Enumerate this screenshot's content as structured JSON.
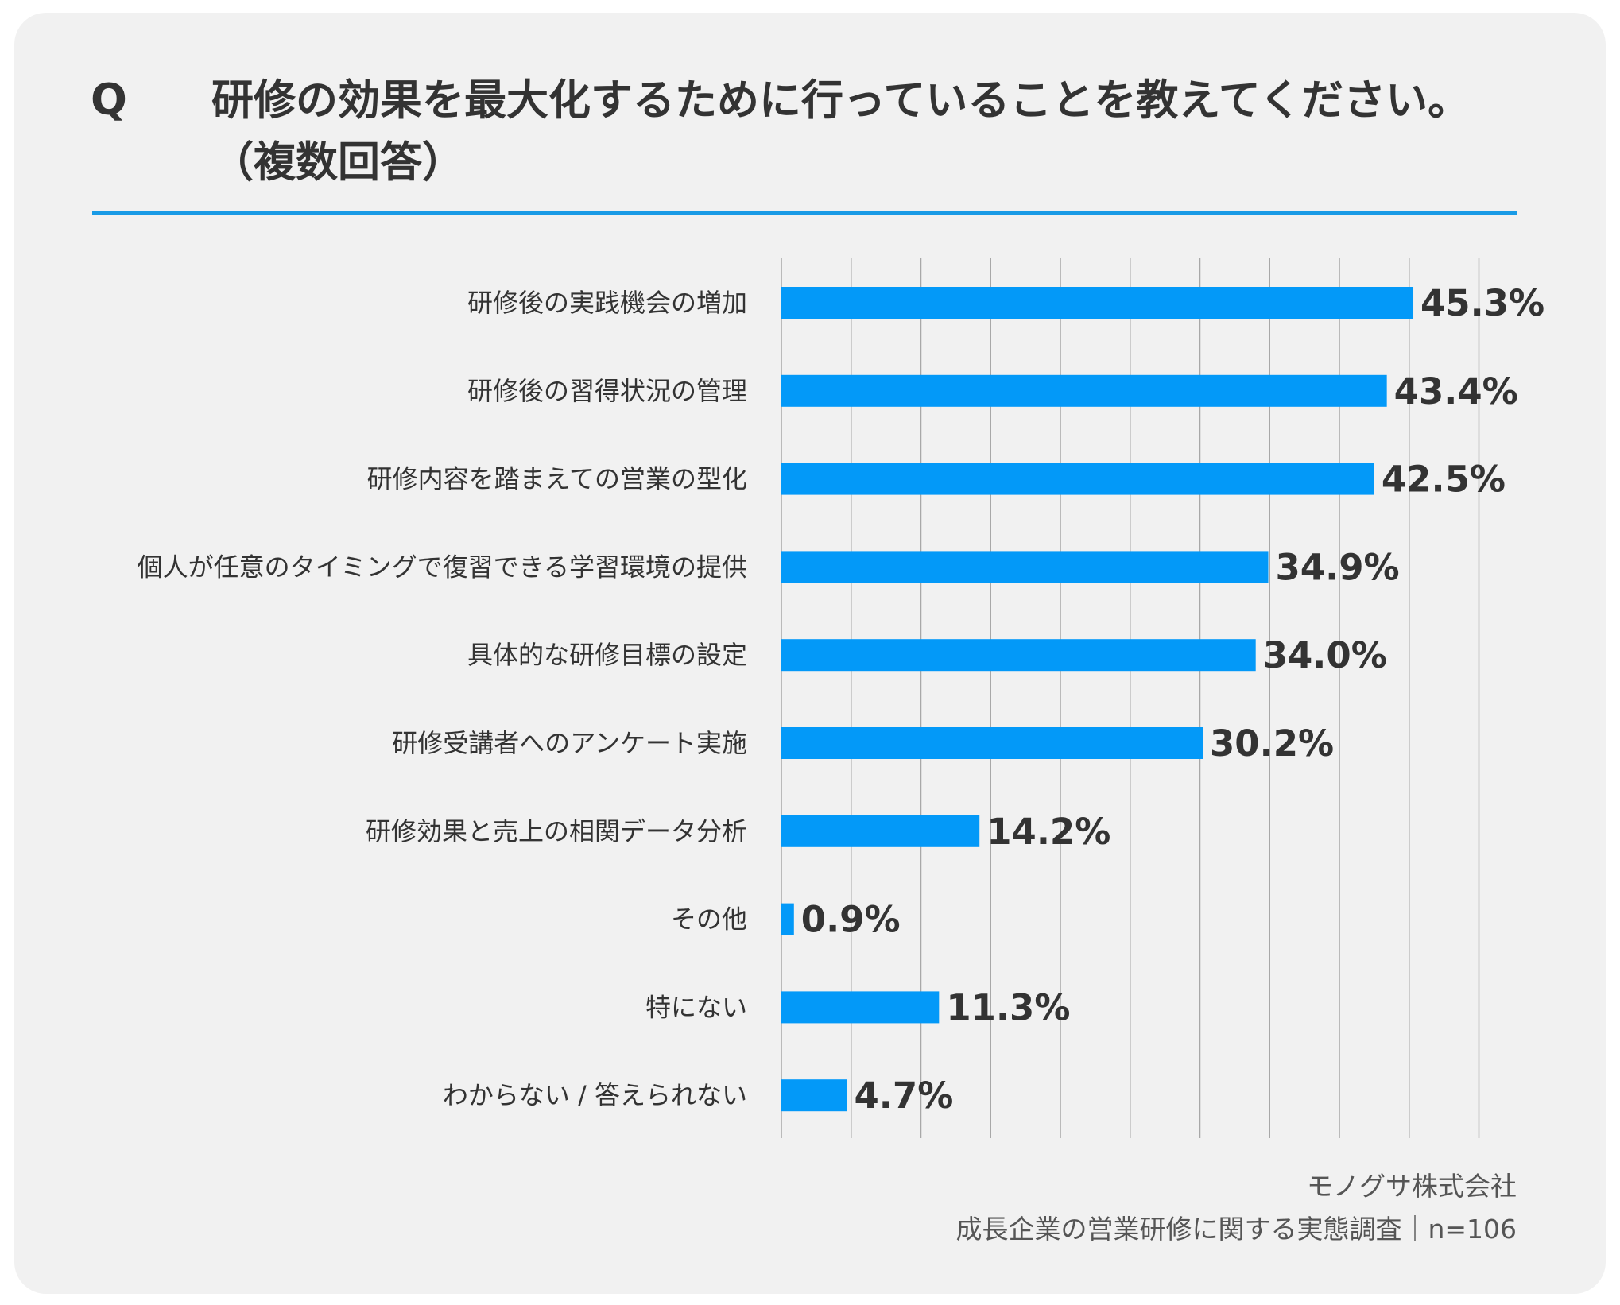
{
  "question": {
    "mark": "Q",
    "text": "研修の効果を最大化するために行っていることを教えてください。",
    "note": "（複数回答）"
  },
  "footer": {
    "company": "モノグサ株式会社",
    "survey": "成長企業の営業研修に関する実態調査｜n=106"
  },
  "colors": {
    "bar": "#0399f8",
    "accent_rule": "#1a9be6",
    "background": "#f1f1f1",
    "gridline": "#a8a8a8"
  },
  "chart_data": {
    "type": "bar",
    "orientation": "horizontal",
    "categories": [
      "研修後の実践機会の増加",
      "研修後の習得状況の管理",
      "研修内容を踏まえての営業の型化",
      "個人が任意のタイミングで復習できる学習環境の提供",
      "具体的な研修目標の設定",
      "研修受講者へのアンケート実施",
      "研修効果と売上の相関データ分析",
      "その他",
      "特にない",
      "わからない / 答えられない"
    ],
    "values": [
      45.3,
      43.4,
      42.5,
      34.9,
      34.0,
      30.2,
      14.2,
      0.9,
      11.3,
      4.7
    ],
    "value_labels": [
      "45.3%",
      "43.4%",
      "42.5%",
      "34.9%",
      "34.0%",
      "30.2%",
      "14.2%",
      "0.9%",
      "11.3%",
      "4.7%"
    ],
    "xlim": [
      0,
      50
    ],
    "grid": true,
    "legend": "none"
  }
}
